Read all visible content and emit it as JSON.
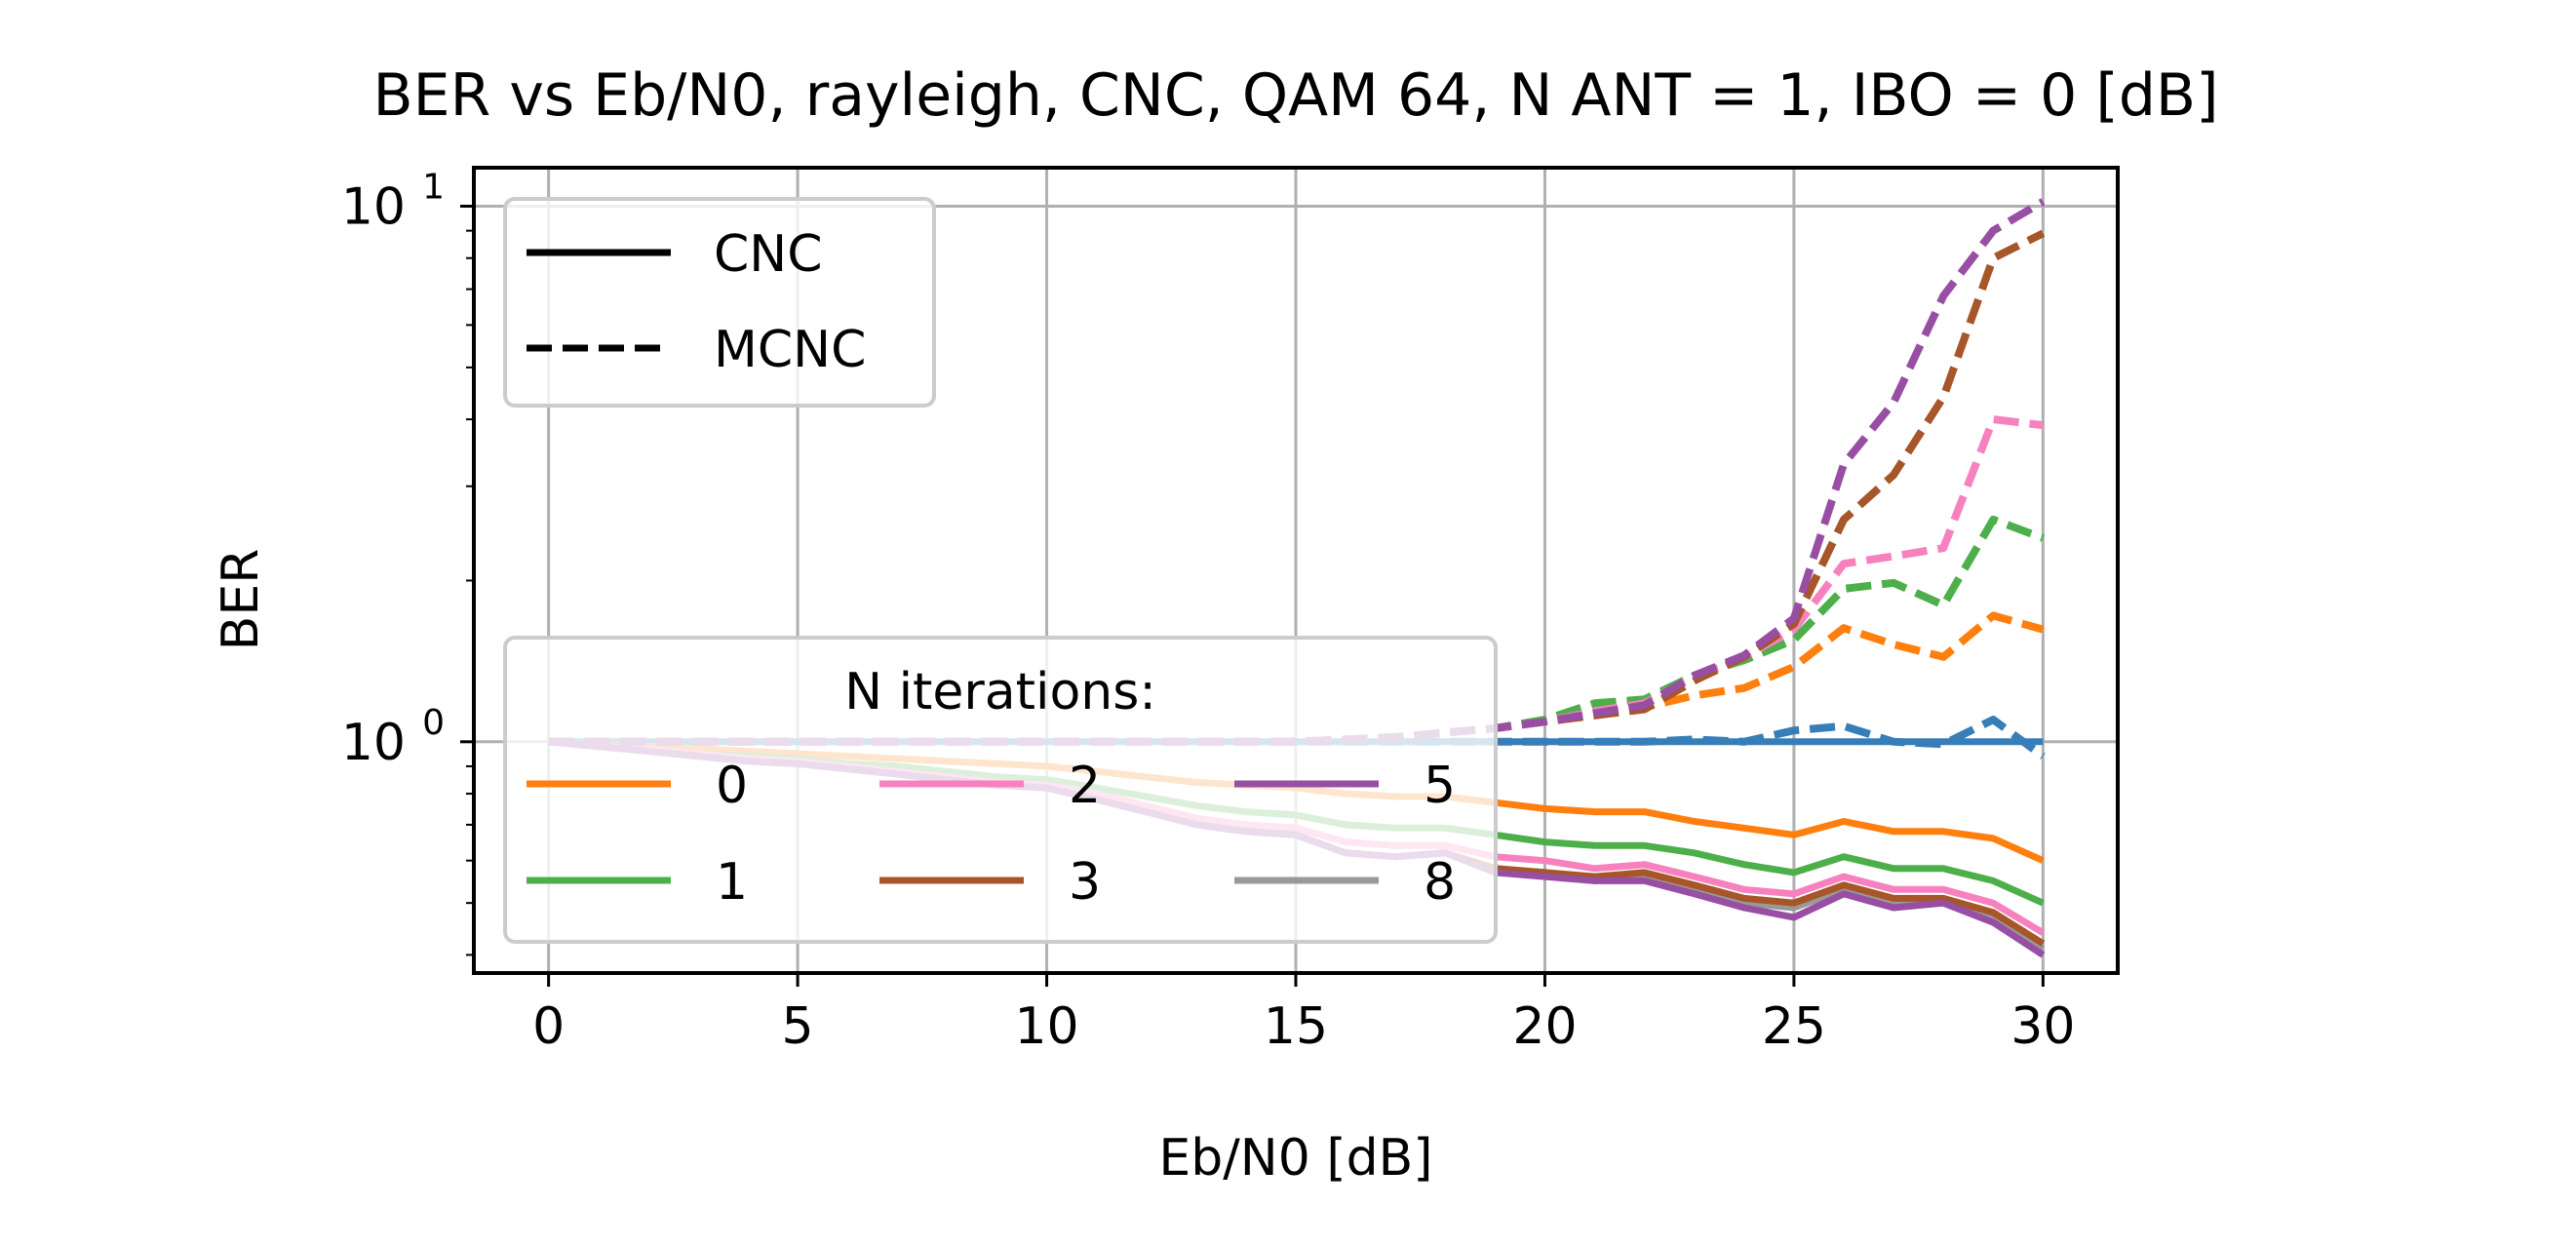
{
  "chart_data": {
    "type": "line",
    "title": "BER vs Eb/N0, rayleigh, CNC, QAM 64, N ANT = 1, IBO = 0 [dB]",
    "xlabel": "Eb/N0 [dB]",
    "ylabel": "BER",
    "xlim": [
      -1.5,
      31.5
    ],
    "ylim": [
      0.37,
      11.8
    ],
    "yscale": "log",
    "grid": true,
    "x_ticks": [
      0,
      5,
      10,
      15,
      20,
      25,
      30
    ],
    "x_tick_labels": [
      "0",
      "5",
      "10",
      "15",
      "20",
      "25",
      "30"
    ],
    "y_ticks": [
      1,
      10
    ],
    "y_tick_labels": [
      {
        "base": "10",
        "exp": "0"
      },
      {
        "base": "10",
        "exp": "1"
      }
    ],
    "style_legend": {
      "placement": "upper left",
      "entries": [
        {
          "label": "CNC",
          "dash": "solid"
        },
        {
          "label": "MCNC",
          "dash": "dashed"
        }
      ]
    },
    "iter_legend": {
      "title": "N iterations:",
      "placement": "lower left",
      "entries": [
        {
          "label": "0",
          "color": "#ff7f0e"
        },
        {
          "label": "2",
          "color": "#f781bf"
        },
        {
          "label": "5",
          "color": "#984ea3"
        },
        {
          "label": "1",
          "color": "#4daf4a"
        },
        {
          "label": "3",
          "color": "#a65628"
        },
        {
          "label": "8",
          "color": "#999999"
        }
      ]
    },
    "x": [
      0,
      1,
      2,
      3,
      4,
      5,
      6,
      7,
      8,
      9,
      10,
      11,
      12,
      13,
      14,
      15,
      16,
      17,
      18,
      19,
      20,
      21,
      22,
      23,
      24,
      25,
      26,
      27,
      28,
      29,
      30
    ],
    "series": [
      {
        "iterations": "ref",
        "style": "solid",
        "color": "#377eb8",
        "values": [
          1,
          1,
          1,
          1,
          1,
          1,
          1,
          1,
          1,
          1,
          1,
          1,
          1,
          1,
          1,
          1,
          1,
          1,
          1,
          1,
          1,
          1,
          1,
          1,
          1,
          1,
          1,
          1,
          1,
          1,
          1
        ]
      },
      {
        "iterations": "ref",
        "style": "dashed",
        "color": "#377eb8",
        "values": [
          1,
          1,
          1,
          1,
          1,
          1,
          1,
          1,
          1,
          1,
          1,
          1,
          1,
          1,
          1,
          1,
          1,
          1,
          1,
          1,
          1,
          1,
          1,
          1.01,
          1,
          1.05,
          1.07,
          1.0,
          0.99,
          1.1,
          0.94
        ]
      },
      {
        "iterations": "8",
        "style": "solid",
        "color": "#999999",
        "values": [
          1,
          0.98,
          0.96,
          0.94,
          0.92,
          0.91,
          0.89,
          0.87,
          0.85,
          0.83,
          0.82,
          0.78,
          0.74,
          0.7,
          0.68,
          0.67,
          0.62,
          0.61,
          0.62,
          0.58,
          0.57,
          0.55,
          0.56,
          0.53,
          0.5,
          0.49,
          0.53,
          0.5,
          0.5,
          0.47,
          0.41
        ]
      },
      {
        "iterations": "0",
        "style": "solid",
        "color": "#ff7f0e",
        "values": [
          1,
          0.99,
          0.98,
          0.97,
          0.96,
          0.95,
          0.94,
          0.93,
          0.92,
          0.91,
          0.9,
          0.88,
          0.86,
          0.84,
          0.83,
          0.82,
          0.8,
          0.79,
          0.79,
          0.77,
          0.75,
          0.74,
          0.74,
          0.71,
          0.69,
          0.67,
          0.71,
          0.68,
          0.68,
          0.66,
          0.6
        ]
      },
      {
        "iterations": "1",
        "style": "solid",
        "color": "#4daf4a",
        "values": [
          1,
          0.99,
          0.97,
          0.95,
          0.94,
          0.93,
          0.91,
          0.9,
          0.88,
          0.86,
          0.85,
          0.82,
          0.79,
          0.76,
          0.74,
          0.73,
          0.7,
          0.69,
          0.69,
          0.67,
          0.65,
          0.64,
          0.64,
          0.62,
          0.59,
          0.57,
          0.61,
          0.58,
          0.58,
          0.55,
          0.5
        ]
      },
      {
        "iterations": "2",
        "style": "solid",
        "color": "#f781bf",
        "values": [
          1,
          0.98,
          0.97,
          0.95,
          0.93,
          0.92,
          0.9,
          0.88,
          0.86,
          0.84,
          0.83,
          0.8,
          0.76,
          0.72,
          0.7,
          0.69,
          0.65,
          0.64,
          0.64,
          0.61,
          0.6,
          0.58,
          0.59,
          0.56,
          0.53,
          0.52,
          0.56,
          0.53,
          0.53,
          0.5,
          0.44
        ]
      },
      {
        "iterations": "3",
        "style": "solid",
        "color": "#a65628",
        "values": [
          1,
          0.98,
          0.96,
          0.94,
          0.92,
          0.91,
          0.89,
          0.87,
          0.85,
          0.83,
          0.82,
          0.78,
          0.74,
          0.7,
          0.68,
          0.67,
          0.62,
          0.61,
          0.62,
          0.58,
          0.57,
          0.56,
          0.57,
          0.54,
          0.51,
          0.5,
          0.54,
          0.51,
          0.51,
          0.48,
          0.42
        ]
      },
      {
        "iterations": "5",
        "style": "solid",
        "color": "#984ea3",
        "values": [
          1,
          0.98,
          0.96,
          0.94,
          0.92,
          0.91,
          0.89,
          0.87,
          0.85,
          0.83,
          0.82,
          0.78,
          0.74,
          0.7,
          0.68,
          0.67,
          0.62,
          0.61,
          0.62,
          0.57,
          0.56,
          0.55,
          0.55,
          0.52,
          0.49,
          0.47,
          0.52,
          0.49,
          0.5,
          0.46,
          0.4
        ]
      },
      {
        "iterations": "0",
        "style": "dashed",
        "color": "#ff7f0e",
        "values": [
          1,
          1,
          1,
          1,
          1,
          1,
          1,
          1,
          1,
          1,
          1,
          1,
          1,
          1,
          1,
          1,
          1.01,
          1.02,
          1.04,
          1.06,
          1.09,
          1.12,
          1.16,
          1.22,
          1.26,
          1.38,
          1.63,
          1.52,
          1.44,
          1.72,
          1.62
        ]
      },
      {
        "iterations": "1",
        "style": "dashed",
        "color": "#4daf4a",
        "values": [
          1,
          1,
          1,
          1,
          1,
          1,
          1,
          1,
          1,
          1,
          1,
          1,
          1,
          1,
          1,
          1,
          1.01,
          1.02,
          1.04,
          1.06,
          1.1,
          1.18,
          1.2,
          1.33,
          1.42,
          1.55,
          1.93,
          1.98,
          1.8,
          2.6,
          2.4
        ]
      },
      {
        "iterations": "2",
        "style": "dashed",
        "color": "#f781bf",
        "values": [
          1,
          1,
          1,
          1,
          1,
          1,
          1,
          1,
          1,
          1,
          1,
          1,
          1,
          1,
          1,
          1,
          1.01,
          1.02,
          1.04,
          1.06,
          1.09,
          1.14,
          1.18,
          1.32,
          1.44,
          1.62,
          2.15,
          2.22,
          2.3,
          4.0,
          3.9
        ]
      },
      {
        "iterations": "3",
        "style": "dashed",
        "color": "#a65628",
        "values": [
          1,
          1,
          1,
          1,
          1,
          1,
          1,
          1,
          1,
          1,
          1,
          1,
          1,
          1,
          1,
          1,
          1.01,
          1.02,
          1.04,
          1.06,
          1.09,
          1.12,
          1.15,
          1.3,
          1.44,
          1.66,
          2.6,
          3.15,
          4.4,
          8.0,
          8.9
        ]
      },
      {
        "iterations": "5",
        "style": "dashed",
        "color": "#984ea3",
        "values": [
          1,
          1,
          1,
          1,
          1,
          1,
          1,
          1,
          1,
          1,
          1,
          1,
          1,
          1,
          1,
          1,
          1.01,
          1.02,
          1.04,
          1.06,
          1.09,
          1.13,
          1.17,
          1.33,
          1.45,
          1.7,
          3.3,
          4.3,
          6.8,
          9.0,
          10.2
        ]
      }
    ]
  }
}
